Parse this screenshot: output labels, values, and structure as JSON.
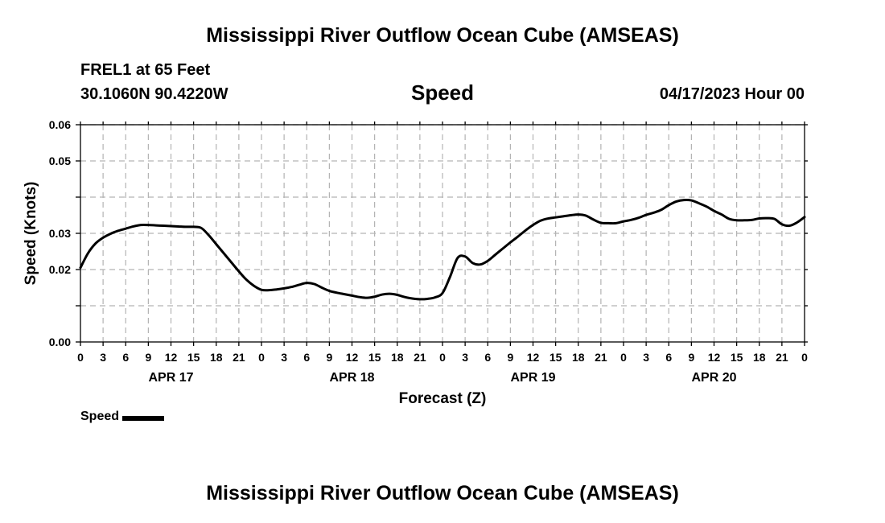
{
  "page": {
    "title_top": "Mississippi River Outflow Ocean Cube (AMSEAS)",
    "title_bottom": "Mississippi River Outflow Ocean Cube (AMSEAS)",
    "station": "FREL1 at 65 Feet",
    "coordinates": "30.1060N  90.4220W",
    "parameter": "Speed",
    "datetime": "04/17/2023 Hour 00"
  },
  "colors": {
    "line": "#000000",
    "grid": "#b3b3b3",
    "background": "#ffffff"
  },
  "chart_data": {
    "type": "line",
    "title": "Speed",
    "xlabel": "Forecast (Z)",
    "ylabel": "Speed (Knots)",
    "xlim": [
      0,
      96
    ],
    "ylim": [
      0,
      0.06
    ],
    "y_ticks": [
      0,
      0.01,
      0.02,
      0.03,
      0.04,
      0.05,
      0.06
    ],
    "y_tick_labels": [
      "0.00",
      "",
      "0.02",
      "0.03",
      "",
      "0.05",
      "0.06"
    ],
    "x_ticks": [
      0,
      3,
      6,
      9,
      12,
      15,
      18,
      21,
      24,
      27,
      30,
      33,
      36,
      39,
      42,
      45,
      48,
      51,
      54,
      57,
      60,
      63,
      66,
      69,
      72,
      75,
      78,
      81,
      84,
      87,
      90,
      93,
      96
    ],
    "x_tick_labels": [
      "0",
      "3",
      "6",
      "9",
      "12",
      "15",
      "18",
      "21",
      "0",
      "3",
      "6",
      "9",
      "12",
      "15",
      "18",
      "21",
      "0",
      "3",
      "6",
      "9",
      "12",
      "15",
      "18",
      "21",
      "0",
      "3",
      "6",
      "9",
      "12",
      "15",
      "18",
      "21",
      "0"
    ],
    "day_labels": [
      {
        "label": "APR 17",
        "hour": 12
      },
      {
        "label": "APR 18",
        "hour": 36
      },
      {
        "label": "APR 19",
        "hour": 60
      },
      {
        "label": "APR 20",
        "hour": 84
      }
    ],
    "grid": true,
    "legend": {
      "label": "Speed",
      "position": "bottom-left"
    },
    "series": [
      {
        "name": "Speed",
        "x": [
          0,
          1,
          2,
          3,
          4,
          5,
          6,
          7,
          8,
          9,
          10,
          11,
          12,
          13,
          14,
          15,
          16,
          17,
          18,
          19,
          20,
          21,
          22,
          23,
          24,
          25,
          26,
          27,
          28,
          29,
          30,
          31,
          32,
          33,
          34,
          35,
          36,
          37,
          38,
          39,
          40,
          41,
          42,
          43,
          44,
          45,
          46,
          47,
          48,
          49,
          50,
          51,
          52,
          53,
          54,
          55,
          56,
          57,
          58,
          59,
          60,
          61,
          62,
          63,
          64,
          65,
          66,
          67,
          68,
          69,
          70,
          71,
          72,
          73,
          74,
          75,
          76,
          77,
          78,
          79,
          80,
          81,
          82,
          83,
          84,
          85,
          86,
          87,
          88,
          89,
          90,
          91,
          92,
          93,
          94,
          95,
          96
        ],
        "values": [
          0.0205,
          0.0245,
          0.0272,
          0.0288,
          0.0299,
          0.0307,
          0.0313,
          0.0319,
          0.0323,
          0.0323,
          0.0322,
          0.0321,
          0.032,
          0.0319,
          0.0318,
          0.0318,
          0.0315,
          0.0295,
          0.027,
          0.0245,
          0.022,
          0.0195,
          0.0172,
          0.0155,
          0.0144,
          0.0143,
          0.0145,
          0.0148,
          0.0152,
          0.0158,
          0.0163,
          0.016,
          0.015,
          0.0141,
          0.0136,
          0.0132,
          0.0128,
          0.0124,
          0.0122,
          0.0125,
          0.0131,
          0.0133,
          0.013,
          0.0124,
          0.012,
          0.0118,
          0.0119,
          0.0123,
          0.0135,
          0.018,
          0.0232,
          0.0236,
          0.0218,
          0.0214,
          0.0224,
          0.0241,
          0.0258,
          0.0275,
          0.0291,
          0.0308,
          0.0323,
          0.0335,
          0.0341,
          0.0344,
          0.0347,
          0.035,
          0.0352,
          0.0349,
          0.0338,
          0.0329,
          0.0328,
          0.0328,
          0.0333,
          0.0337,
          0.0343,
          0.0351,
          0.0357,
          0.0365,
          0.0378,
          0.0388,
          0.0392,
          0.0391,
          0.0383,
          0.0374,
          0.0362,
          0.0352,
          0.034,
          0.0336,
          0.0336,
          0.0337,
          0.0341,
          0.0342,
          0.034,
          0.0325,
          0.0321,
          0.033,
          0.0345
        ]
      }
    ]
  }
}
